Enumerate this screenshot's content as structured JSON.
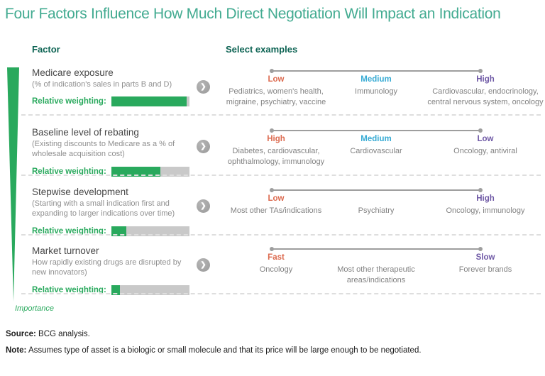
{
  "title": "Four Factors Influence How Much Direct Negotiation Will Impact an Indication",
  "column_headers": {
    "factor": "Factor",
    "examples": "Select examples"
  },
  "importance_label": "Importance",
  "weighting_label": "Relative weighting:",
  "chevron_glyph": "❯",
  "colors": {
    "title": "#43ab91",
    "header": "#0e6454",
    "green": "#29a95d",
    "scale_left": "#dc6a4f",
    "scale_mid": "#38abd4",
    "scale_right": "#6e58a5"
  },
  "rows": [
    {
      "name": "Medicare exposure",
      "description": "(% of indication's sales in parts B and D)",
      "weighting_pct": 96,
      "scale": [
        {
          "label": "Low",
          "examples": "Pediatrics, women's health, migraine, psychiatry, vaccine"
        },
        {
          "label": "Medium",
          "examples": "Immunology"
        },
        {
          "label": "High",
          "examples": "Cardiovascular, endocrinology, central nervous system, oncology"
        }
      ]
    },
    {
      "name": "Baseline level of rebating",
      "description": "(Existing discounts to Medicare as a % of wholesale acquisition cost)",
      "weighting_pct": 63,
      "scale": [
        {
          "label": "High",
          "examples": "Diabetes, cardiovascular, ophthalmology, immunology"
        },
        {
          "label": "Medium",
          "examples": "Cardiovascular"
        },
        {
          "label": "Low",
          "examples": "Oncology, antiviral"
        }
      ]
    },
    {
      "name": "Stepwise development",
      "description": "(Starting with a small indication first and expanding to larger indications over time)",
      "weighting_pct": 19,
      "scale": [
        {
          "label": "Low",
          "examples": "Most other TAs/indications"
        },
        {
          "label": "",
          "examples": "Psychiatry"
        },
        {
          "label": "High",
          "examples": "Oncology, immunology"
        }
      ]
    },
    {
      "name": "Market turnover",
      "description": "How rapidly existing drugs are disrupted by new innovators)",
      "weighting_pct": 11,
      "scale": [
        {
          "label": "Fast",
          "examples": "Oncology"
        },
        {
          "label": "",
          "examples": "Most other therapeutic areas/indications"
        },
        {
          "label": "Slow",
          "examples": "Forever brands"
        }
      ]
    }
  ],
  "footer": {
    "source_label": "Source:",
    "source_text": " BCG analysis.",
    "note_label": "Note:",
    "note_text": " Assumes type of asset is a biologic or small molecule and that its price will be large enough to be negotiated."
  }
}
